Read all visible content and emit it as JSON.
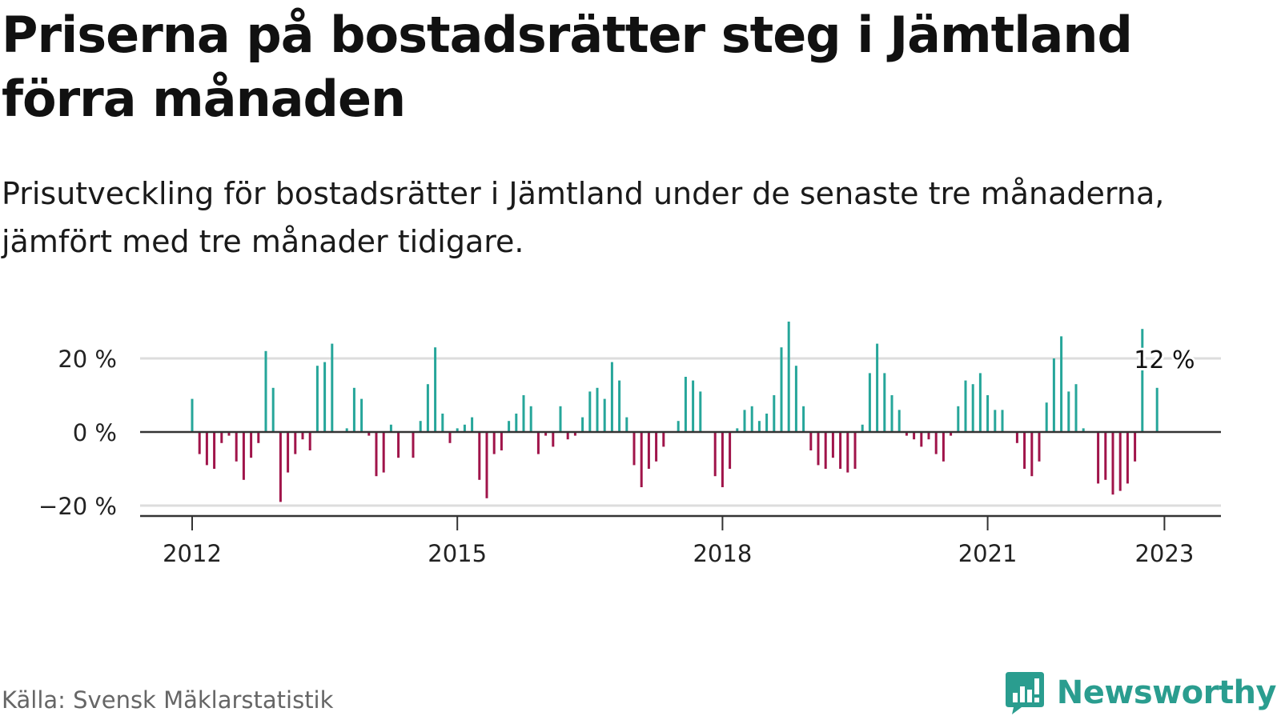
{
  "title": "Priserna på bostadsrätter steg i Jämtland förra månaden",
  "subtitle": "Prisutveckling för bostadsrätter i Jämtland under de senaste tre månaderna, jämfört med tre månader tidigare.",
  "source": "Källa: Svensk Mäklarstatistik",
  "brand": "Newsworthy",
  "colors": {
    "positive": "#26a69a",
    "negative": "#a0144a",
    "grid": "#dddddd",
    "axis": "#333333",
    "brand": "#2a9d8f"
  },
  "chart_data": {
    "type": "bar",
    "start": "2012-01",
    "frequency": "monthly",
    "ylim": [
      -23,
      30
    ],
    "yticks": [
      -20,
      0,
      20
    ],
    "ytick_labels": [
      "−20 %",
      "0 %",
      "20 %"
    ],
    "xticks": [
      "2012-01",
      "2015-01",
      "2018-01",
      "2021-01",
      "2023-01"
    ],
    "xtick_labels": [
      "2012",
      "2015",
      "2018",
      "2021",
      "2023"
    ],
    "annotation": {
      "date": "2023-01",
      "label": "12 %"
    },
    "values": [
      9,
      -6,
      -9,
      -10,
      -3,
      -1,
      -8,
      -13,
      -7,
      -3,
      22,
      12,
      -19,
      -11,
      -6,
      -2,
      -5,
      18,
      19,
      24,
      0,
      1,
      12,
      9,
      -1,
      -12,
      -11,
      2,
      -7,
      0,
      -7,
      3,
      13,
      23,
      5,
      -3,
      1,
      2,
      4,
      -13,
      -18,
      -6,
      -5,
      3,
      5,
      10,
      7,
      -6,
      -1,
      -4,
      7,
      -2,
      -1,
      4,
      11,
      12,
      9,
      19,
      14,
      4,
      -9,
      -15,
      -10,
      -8,
      -4,
      0,
      3,
      15,
      14,
      11,
      0,
      -12,
      -15,
      -10,
      1,
      6,
      7,
      3,
      5,
      10,
      23,
      30,
      18,
      7,
      -5,
      -9,
      -10,
      -7,
      -10,
      -11,
      -10,
      2,
      16,
      24,
      16,
      10,
      6,
      -1,
      -2,
      -4,
      -2,
      -6,
      -8,
      -1,
      7,
      14,
      13,
      16,
      10,
      6,
      6,
      0,
      -3,
      -10,
      -12,
      -8,
      8,
      20,
      26,
      11,
      13,
      1,
      0,
      -14,
      -13,
      -17,
      -16,
      -14,
      -8,
      28,
      0,
      12
    ]
  }
}
